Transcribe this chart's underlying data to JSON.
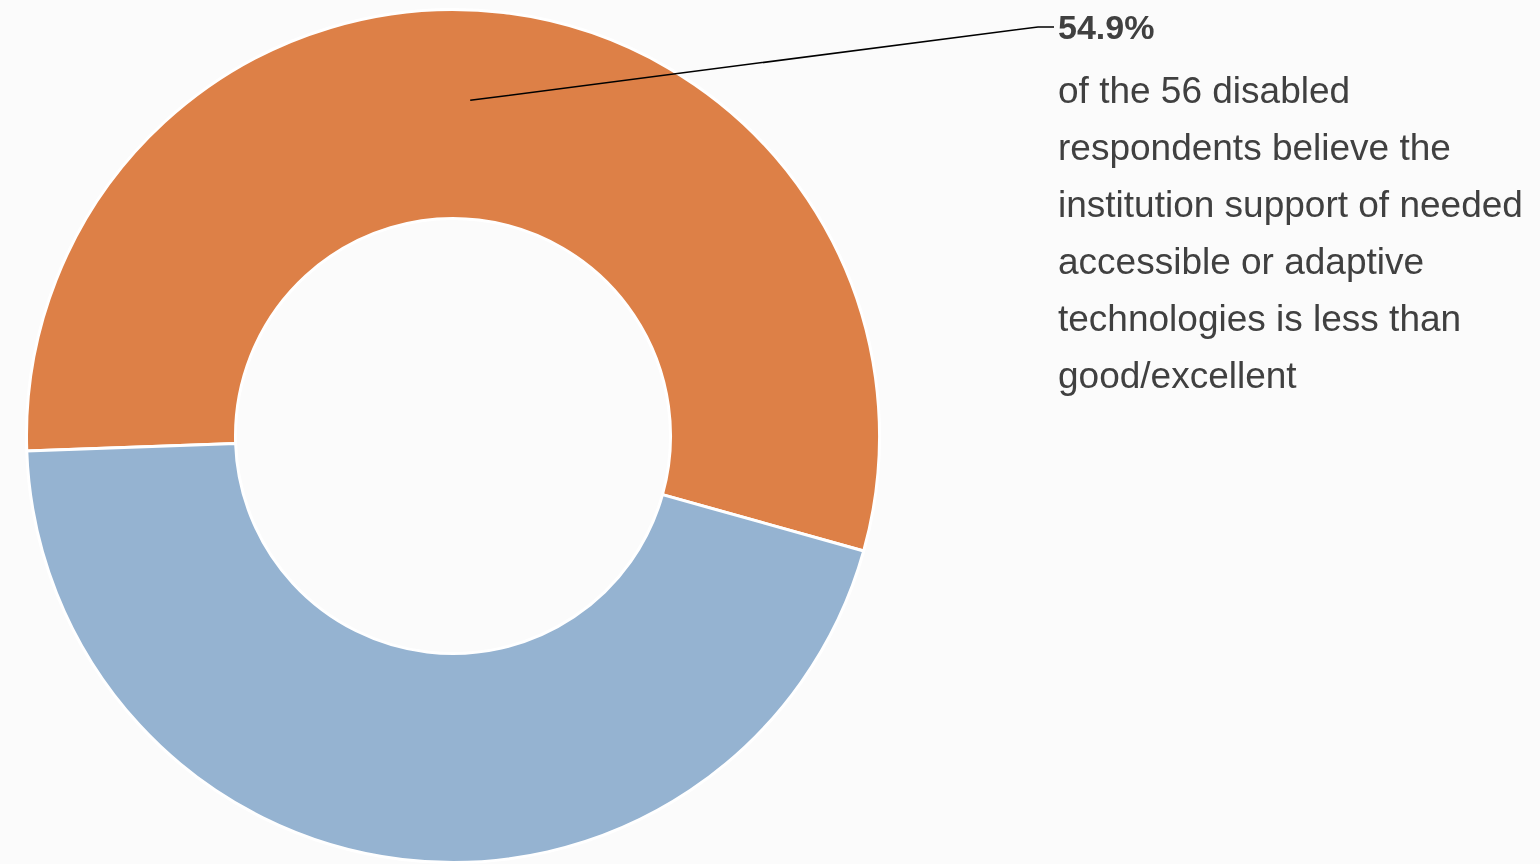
{
  "chart_data": {
    "type": "donut",
    "categories": [
      null,
      null
    ],
    "values": [
      54.9,
      45.1
    ],
    "colors": [
      "#dd8047",
      "#95b3d1"
    ],
    "value_labels": [
      "54.9%",
      null
    ],
    "legend": false,
    "annotations": [
      "of the 56 disabled respondents believe the institution support of needed accessible or adaptive technologies is less than good/excellent"
    ]
  }
}
